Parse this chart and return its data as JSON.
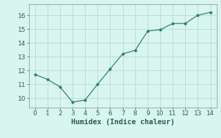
{
  "x": [
    0,
    1,
    2,
    3,
    4,
    5,
    6,
    7,
    8,
    9,
    10,
    11,
    12,
    13,
    14
  ],
  "y": [
    11.7,
    11.35,
    10.8,
    9.7,
    9.85,
    11.0,
    12.1,
    13.2,
    13.45,
    14.85,
    14.95,
    15.4,
    15.4,
    16.0,
    16.2
  ],
  "line_color": "#2a7d6f",
  "marker": "o",
  "marker_size": 2.5,
  "bg_color": "#d8f5f0",
  "grid_color": "#b8d8d0",
  "xlabel": "Humidex (Indice chaleur)",
  "xlim": [
    -0.5,
    14.5
  ],
  "ylim": [
    9.3,
    16.8
  ],
  "xticks": [
    0,
    1,
    2,
    3,
    4,
    5,
    6,
    7,
    8,
    9,
    10,
    11,
    12,
    13,
    14
  ],
  "yticks": [
    10,
    11,
    12,
    13,
    14,
    15,
    16
  ],
  "tick_font_size": 6.5,
  "xlabel_font_size": 7.5
}
